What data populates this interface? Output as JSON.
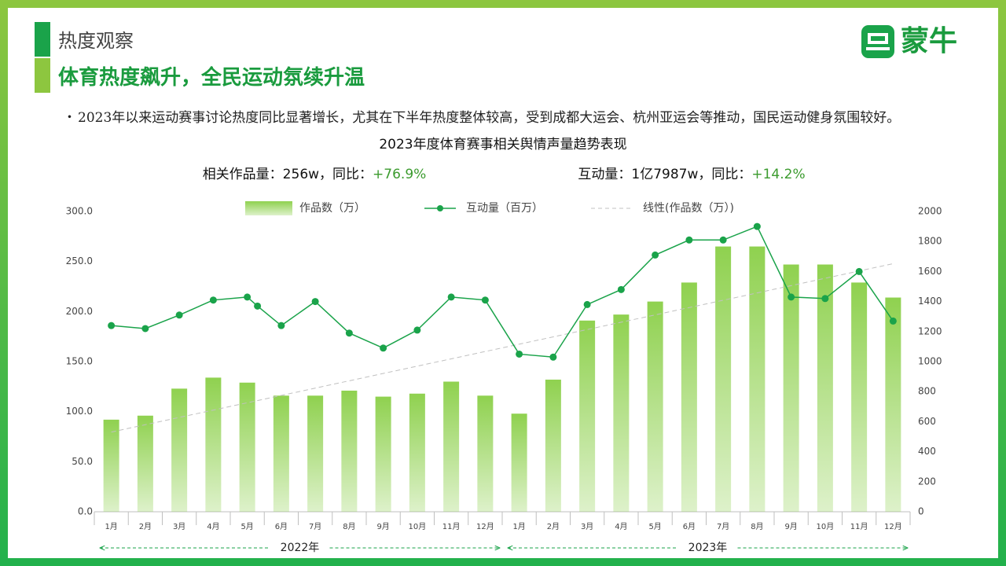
{
  "header": {
    "section": "热度观察",
    "title": "体育热度飙升，全民运动氛续升温",
    "logo": "蒙牛"
  },
  "bullet": "2023年以来运动赛事讨论热度同比显著增长，尤其在下半年热度整体较高，受到成都大运会、杭州亚运会等推动，国民运动健身氛围较好。",
  "chart_data": {
    "type": "bar",
    "title": "2023年度体育赛事相关舆情声量趋势表现",
    "stats": [
      {
        "label": "相关作品量：256w，同比：",
        "change": "+76.9%"
      },
      {
        "label": "互动量：1亿7987w，同比：",
        "change": "+14.2%"
      }
    ],
    "categories": [
      "1月",
      "2月",
      "3月",
      "4月",
      "5月",
      "6月",
      "7月",
      "8月",
      "9月",
      "10月",
      "11月",
      "12月",
      "1月",
      "2月",
      "3月",
      "4月",
      "5月",
      "6月",
      "7月",
      "8月",
      "9月",
      "10月",
      "11月",
      "12月"
    ],
    "groups": [
      {
        "label": "2022年",
        "size": 12
      },
      {
        "label": "2023年",
        "size": 12
      }
    ],
    "series": [
      {
        "name": "作品数（万）",
        "color": "#8fd14f",
        "values": [
          92,
          96,
          123,
          134,
          129,
          116,
          116,
          121,
          115,
          118,
          130,
          116,
          98,
          132,
          191,
          197,
          210,
          229,
          265,
          265,
          247,
          247,
          229,
          214
        ]
      },
      {
        "name": "互动量（百万）",
        "type": "line",
        "axis": "y2",
        "color": "#1aa34a",
        "x": [
          1,
          2,
          3,
          4,
          5,
          5.3,
          6,
          7,
          8,
          9,
          10,
          11,
          12,
          13,
          14,
          15,
          16,
          17,
          18,
          19,
          20,
          21,
          22,
          23,
          24
        ],
        "values": [
          1240,
          1220,
          1310,
          1410,
          1430,
          1370,
          1240,
          1400,
          1190,
          1090,
          1210,
          1430,
          1410,
          1050,
          1030,
          1380,
          1480,
          1710,
          1810,
          1810,
          1900,
          1430,
          1420,
          1600,
          1270
        ]
      }
    ],
    "trendline": {
      "name": "线性(作品数（万）)",
      "color": "#c0c0c0"
    },
    "ylim": [
      0,
      300
    ],
    "yticks": [
      {
        "value": 0,
        "label": "0.0"
      },
      {
        "value": 50,
        "label": "50.0"
      },
      {
        "value": 100,
        "label": "100.0"
      },
      {
        "value": 150,
        "label": "150.0"
      },
      {
        "value": 200,
        "label": "200.0"
      },
      {
        "value": 250,
        "label": "250.0"
      },
      {
        "value": 300,
        "label": "300.0"
      }
    ],
    "y2lim": [
      0,
      2000
    ],
    "y2ticks": [
      0,
      200,
      400,
      600,
      800,
      1000,
      1200,
      1400,
      1600,
      1800,
      2000
    ]
  }
}
